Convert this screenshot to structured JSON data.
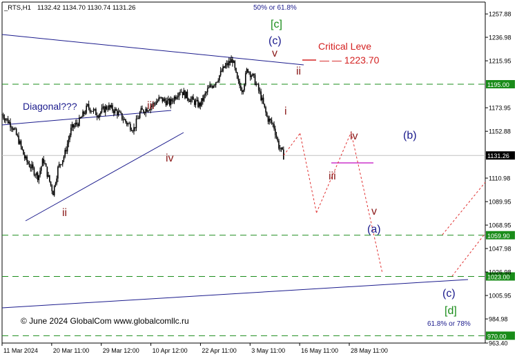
{
  "header": {
    "symbol": "_RTS,H1",
    "ohlc": "1132.42 1134.70 1130.74 1131.26",
    "top_fib_note": "50% or 61.8%"
  },
  "footer": {
    "copyright": "© June 2024 GlobalCom www.globalcomllc.ru",
    "bottom_fib_note": "61.8% or 78%"
  },
  "annotations": {
    "critical_title": "Critical Leve",
    "critical_value": "— — 1223.70",
    "diagonal": "Diagonal???"
  },
  "wave_labels": [
    {
      "text": "[c]",
      "color": "#1a8c1a",
      "at": "cycle-top"
    },
    {
      "text": "(c)",
      "color": "#1a1a8c",
      "at": "cycle-top"
    },
    {
      "text": "v",
      "color": "#8b1a1a",
      "at": "cycle-top"
    },
    {
      "text": "ii",
      "color": "#8b1a1a",
      "at": "after-top"
    },
    {
      "text": "i",
      "color": "#8b1a1a",
      "at": "after-top"
    },
    {
      "text": "iii",
      "color": "#8b1a1a",
      "at": "diagonal"
    },
    {
      "text": "iv",
      "color": "#8b1a1a",
      "at": "diagonal"
    },
    {
      "text": "ii",
      "color": "#8b1a1a",
      "at": "diagonal-low"
    },
    {
      "text": "iv",
      "color": "#8b1a1a",
      "at": "forecast"
    },
    {
      "text": "iii",
      "color": "#8b1a1a",
      "at": "current"
    },
    {
      "text": "v",
      "color": "#8b1a1a",
      "at": "forecast"
    },
    {
      "text": "(a)",
      "color": "#1a1a8c",
      "at": "forecast"
    },
    {
      "text": "(b)",
      "color": "#1a1a8c",
      "at": "forecast"
    },
    {
      "text": "(c)",
      "color": "#1a1a8c",
      "at": "forecast"
    },
    {
      "text": "[d]",
      "color": "#1a8c1a",
      "at": "forecast"
    }
  ],
  "colors": {
    "candles": "#000000",
    "level_lines": "#1a8c1a",
    "trendlines": "#1a1a8c",
    "forecast": "#e03030",
    "critical": "#d42020",
    "marker": "#cc33cc",
    "price_tag_bg": "#1a8c1a",
    "current_tag_bg": "#000000"
  },
  "chart_data": {
    "type": "candlestick",
    "title": "",
    "xlabel": "",
    "ylabel": "",
    "ylim": [
      963.4,
      1268.5
    ],
    "y_ticks": [
      "1257.88",
      "1236.98",
      "1215.95",
      "1195.00",
      "1173.95",
      "1152.88",
      "1131.26",
      "1110.98",
      "1089.95",
      "1068.95",
      "1047.98",
      "1026.98",
      "1005.95",
      "984.98",
      "970.00",
      "963.40"
    ],
    "x_ticks": [
      "11 Mar 2024",
      "20 Mar 11:00",
      "29 Mar 12:00",
      "10 Apr 12:00",
      "22 Apr 11:00",
      "3 May 11:00",
      "16 May 11:00",
      "28 May 11:00"
    ],
    "levels": [
      {
        "price": 1195.0,
        "label": "1195.00"
      },
      {
        "price": 1059.9,
        "label": "1059.90"
      },
      {
        "price": 1023.0,
        "label": "1023.00"
      },
      {
        "price": 970.0,
        "label": "970.00"
      }
    ],
    "current_price": {
      "price": 1131.26,
      "label": "1131.26"
    },
    "critical_level": 1223.7,
    "price_path": [
      {
        "t": 0.0,
        "p": 1168
      },
      {
        "t": 0.03,
        "p": 1158
      },
      {
        "t": 0.05,
        "p": 1145
      },
      {
        "t": 0.07,
        "p": 1128
      },
      {
        "t": 0.09,
        "p": 1120
      },
      {
        "t": 0.11,
        "p": 1112
      },
      {
        "t": 0.125,
        "p": 1128
      },
      {
        "t": 0.14,
        "p": 1112
      },
      {
        "t": 0.155,
        "p": 1098
      },
      {
        "t": 0.17,
        "p": 1120
      },
      {
        "t": 0.19,
        "p": 1132
      },
      {
        "t": 0.21,
        "p": 1155
      },
      {
        "t": 0.235,
        "p": 1162
      },
      {
        "t": 0.26,
        "p": 1175
      },
      {
        "t": 0.29,
        "p": 1168
      },
      {
        "t": 0.32,
        "p": 1175
      },
      {
        "t": 0.35,
        "p": 1170
      },
      {
        "t": 0.38,
        "p": 1160
      },
      {
        "t": 0.4,
        "p": 1155
      },
      {
        "t": 0.42,
        "p": 1170
      },
      {
        "t": 0.45,
        "p": 1175
      },
      {
        "t": 0.48,
        "p": 1182
      },
      {
        "t": 0.51,
        "p": 1178
      },
      {
        "t": 0.54,
        "p": 1190
      },
      {
        "t": 0.57,
        "p": 1182
      },
      {
        "t": 0.6,
        "p": 1176
      },
      {
        "t": 0.625,
        "p": 1190
      },
      {
        "t": 0.65,
        "p": 1198
      },
      {
        "t": 0.675,
        "p": 1210
      },
      {
        "t": 0.7,
        "p": 1217
      },
      {
        "t": 0.715,
        "p": 1197
      },
      {
        "t": 0.73,
        "p": 1190
      },
      {
        "t": 0.745,
        "p": 1209
      },
      {
        "t": 0.765,
        "p": 1200
      },
      {
        "t": 0.785,
        "p": 1185
      },
      {
        "t": 0.805,
        "p": 1165
      },
      {
        "t": 0.825,
        "p": 1158
      },
      {
        "t": 0.84,
        "p": 1140
      },
      {
        "t": 0.855,
        "p": 1131
      }
    ],
    "forecast_path": [
      {
        "t": 0.855,
        "p": 1131.26
      },
      {
        "t": 0.905,
        "p": 1151
      },
      {
        "t": 0.955,
        "p": 1080
      },
      {
        "t": 1.06,
        "p": 1152
      },
      {
        "t": 1.155,
        "p": 1026
      }
    ]
  }
}
